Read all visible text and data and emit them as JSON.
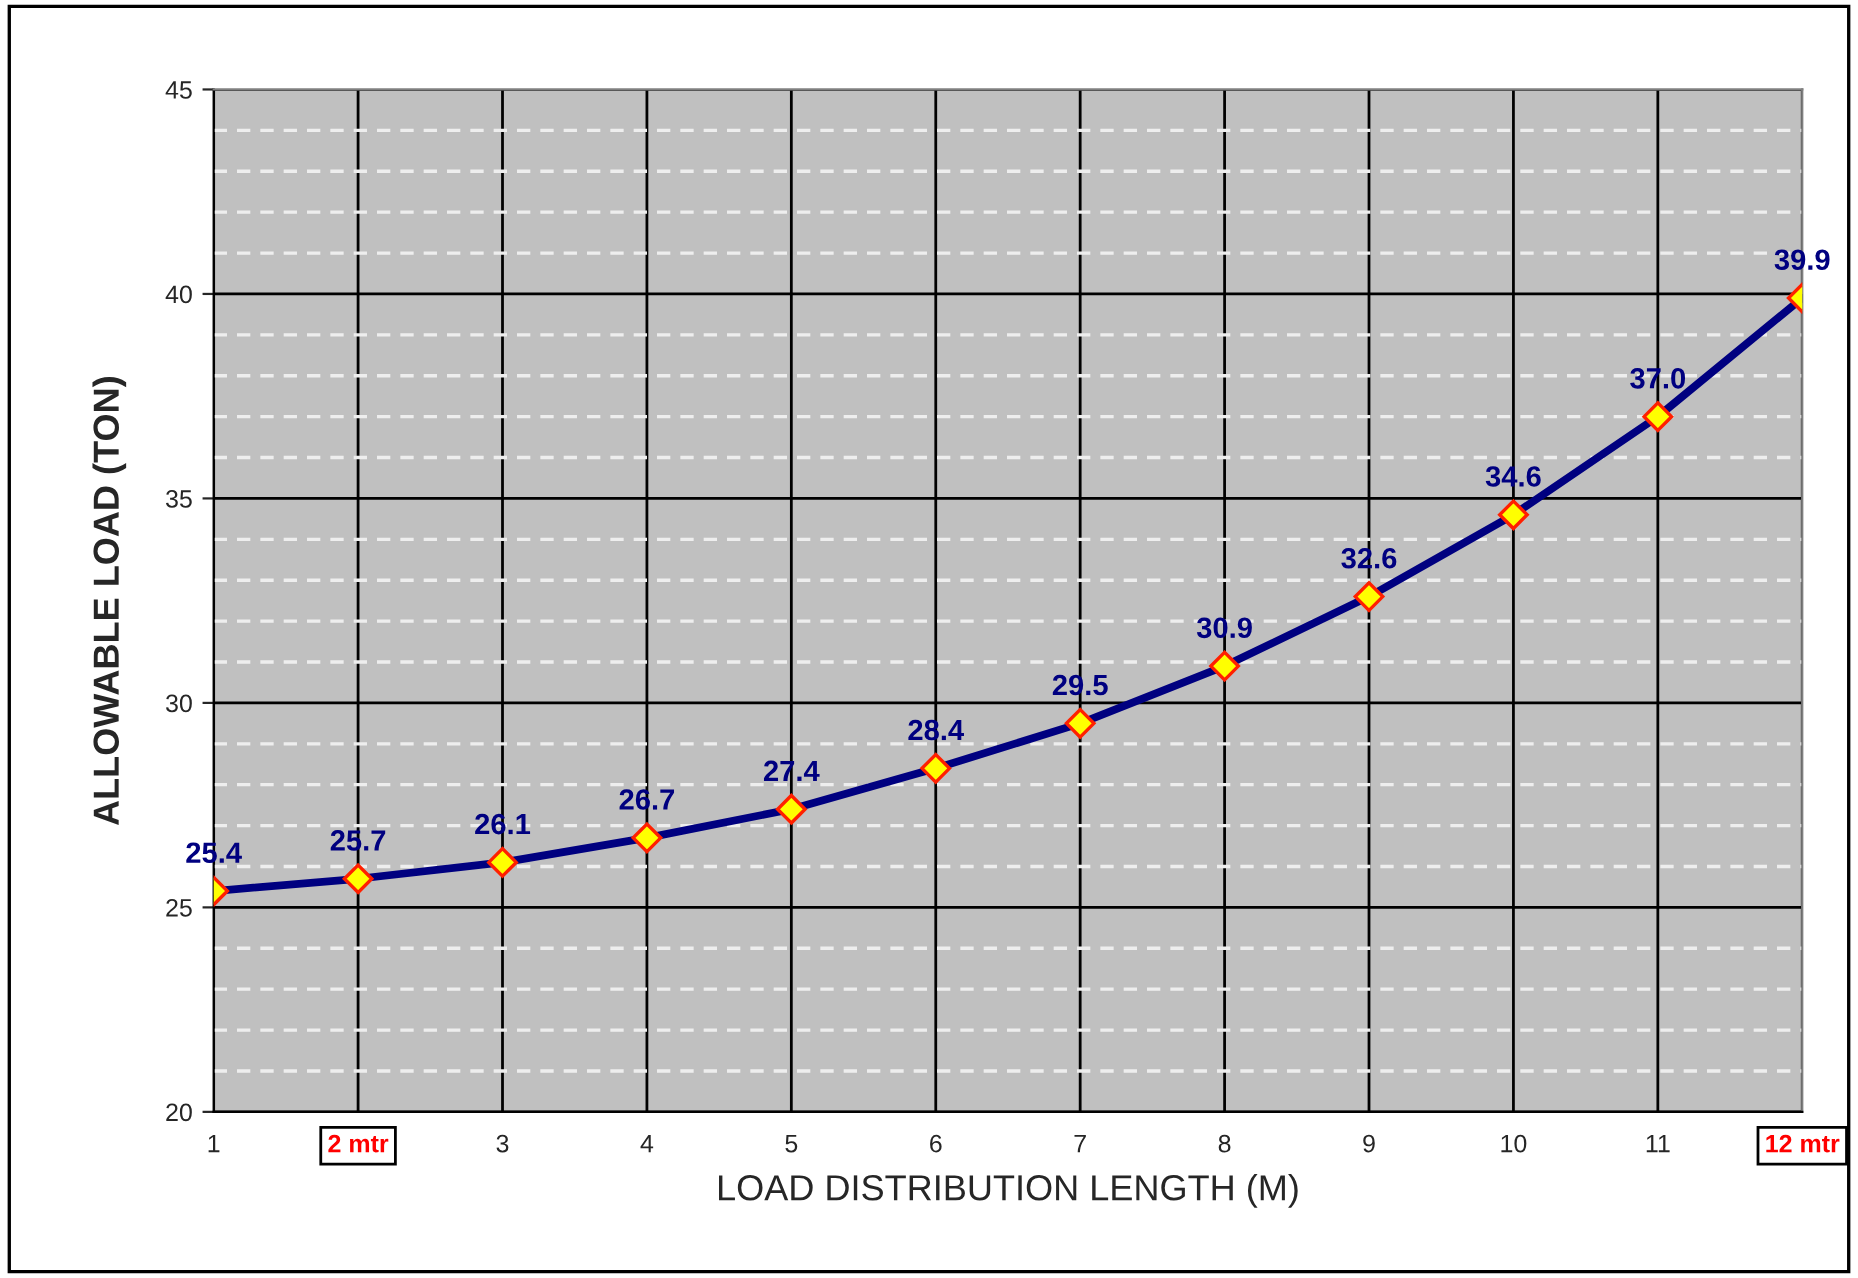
{
  "chart_data": {
    "type": "line",
    "xlabel": "LOAD DISTRIBUTION LENGTH (M)",
    "ylabel": "ALLOWABLE LOAD (TON)",
    "x": [
      1,
      2,
      3,
      4,
      5,
      6,
      7,
      8,
      9,
      10,
      11,
      12
    ],
    "series": [
      {
        "color": "#000080",
        "values": [
          25.4,
          25.7,
          26.1,
          26.7,
          27.4,
          28.4,
          29.5,
          30.9,
          32.6,
          34.6,
          37.0,
          39.9
        ],
        "value_labels": [
          "25.4",
          "25.7",
          "26.1",
          "26.7",
          "27.4",
          "28.4",
          "29.5",
          "30.9",
          "32.6",
          "34.6",
          "37.0",
          "39.9"
        ]
      }
    ],
    "xlim": [
      1,
      12
    ],
    "xticks": [
      1,
      {
        "value": 2,
        "label": "2 mtr"
      },
      3,
      4,
      5,
      6,
      7,
      8,
      9,
      10,
      11,
      {
        "value": 12,
        "label": "12 mtr"
      }
    ],
    "ylim": [
      20,
      45
    ],
    "yticks": [
      20,
      25,
      30,
      35,
      40,
      45
    ],
    "grid": true,
    "marker": "diamond",
    "line_style": "solid"
  }
}
